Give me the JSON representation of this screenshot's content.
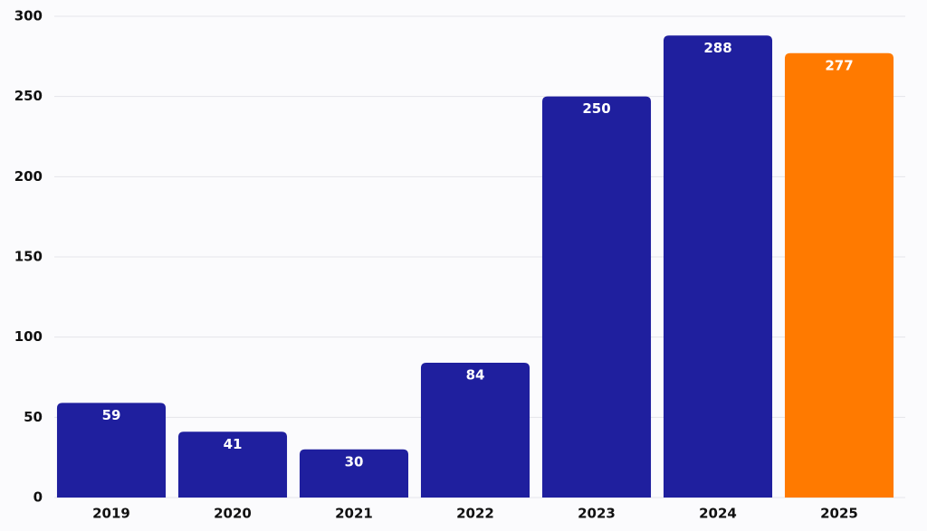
{
  "chart_data": {
    "type": "bar",
    "categories": [
      "2019",
      "2020",
      "2021",
      "2022",
      "2023",
      "2024",
      "2025"
    ],
    "values": [
      59,
      41,
      30,
      84,
      250,
      288,
      277
    ],
    "colors": [
      "#1f1f9e",
      "#1f1f9e",
      "#1f1f9e",
      "#1f1f9e",
      "#1f1f9e",
      "#1f1f9e",
      "#ff7a00"
    ],
    "ylim": [
      0,
      300
    ],
    "yticks": [
      0,
      50,
      100,
      150,
      200,
      250,
      300
    ],
    "grid": true
  }
}
